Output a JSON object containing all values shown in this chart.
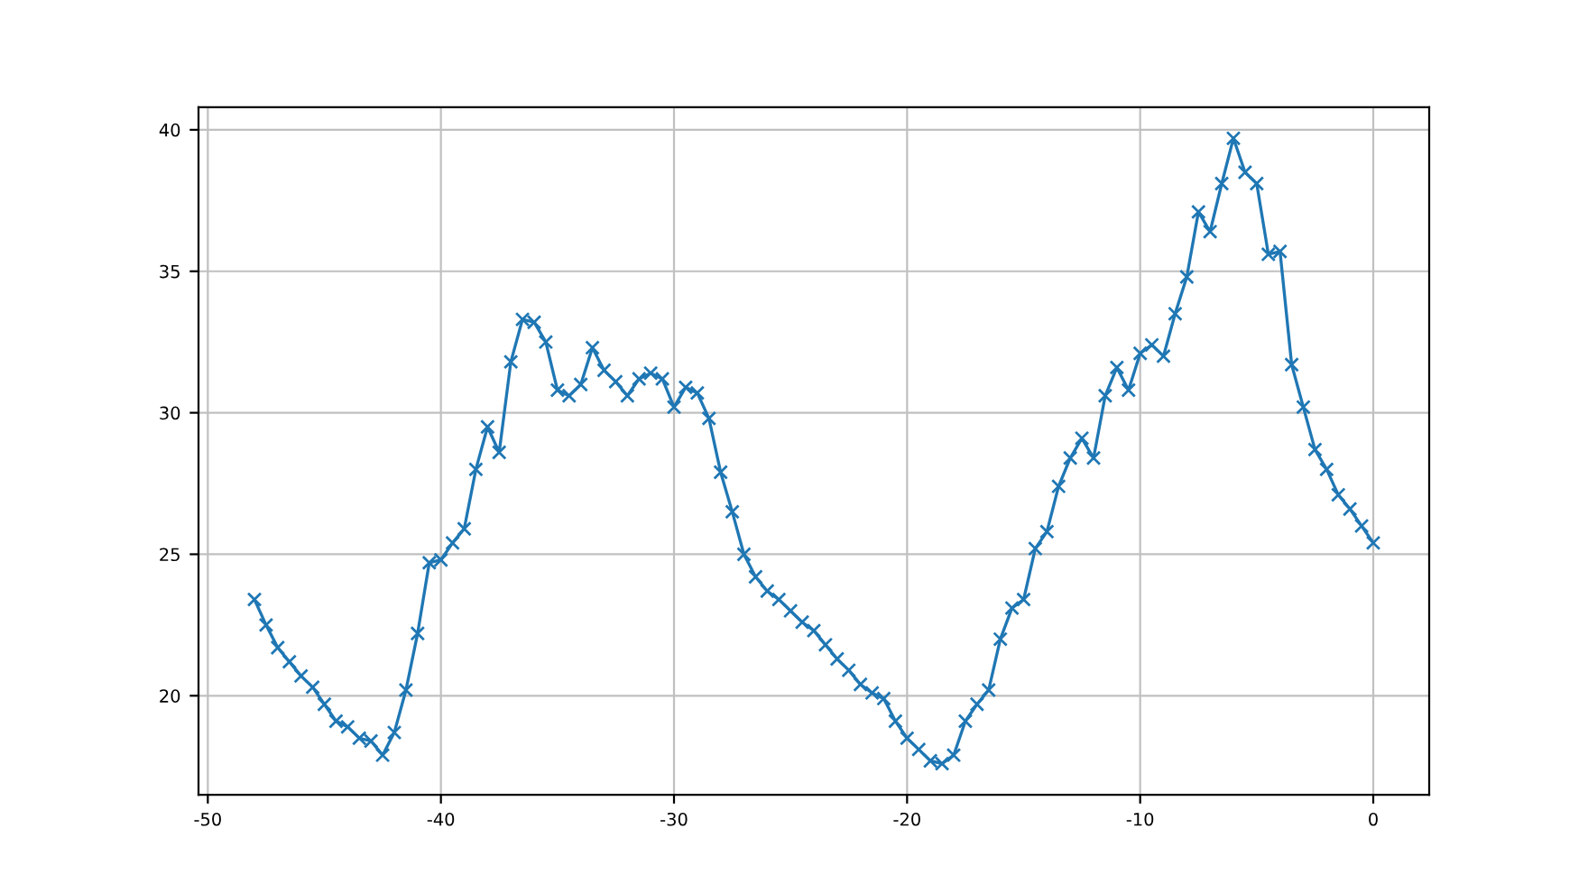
{
  "chart_data": {
    "type": "line",
    "marker": "cross",
    "line_style": "solid",
    "grid": true,
    "x": [
      -48,
      -47.5,
      -47,
      -46.5,
      -46,
      -45.5,
      -45,
      -44.5,
      -44,
      -43.5,
      -43,
      -42.5,
      -42,
      -41.5,
      -41,
      -40.5,
      -40,
      -39.5,
      -39,
      -38.5,
      -38,
      -37.5,
      -37,
      -36.5,
      -36,
      -35.5,
      -35,
      -34.5,
      -34,
      -33.5,
      -33,
      -32.5,
      -32,
      -31.5,
      -31,
      -30.5,
      -30,
      -29.5,
      -29,
      -28.5,
      -28,
      -27.5,
      -27,
      -26.5,
      -26,
      -25.5,
      -25,
      -24.5,
      -24,
      -23.5,
      -23,
      -22.5,
      -22,
      -21.5,
      -21,
      -20.5,
      -20,
      -19.5,
      -19,
      -18.5,
      -18,
      -17.5,
      -17,
      -16.5,
      -16,
      -15.5,
      -15,
      -14.5,
      -14,
      -13.5,
      -13,
      -12.5,
      -12,
      -11.5,
      -11,
      -10.5,
      -10,
      -9.5,
      -9,
      -8.5,
      -8,
      -7.5,
      -7,
      -6.5,
      -6,
      -5.5,
      -5,
      -4.5,
      -4,
      -3.5,
      -3,
      -2.5,
      -2,
      -1.5,
      -1,
      -0.5,
      0
    ],
    "series": [
      {
        "color": "#1f77b4",
        "values": [
          23.4,
          22.5,
          21.7,
          21.2,
          20.7,
          20.3,
          19.7,
          19.1,
          18.9,
          18.5,
          18.4,
          17.9,
          18.7,
          20.2,
          22.2,
          24.7,
          24.8,
          25.4,
          25.9,
          28.0,
          29.5,
          28.6,
          31.8,
          33.3,
          33.2,
          32.5,
          30.8,
          30.6,
          31.0,
          32.3,
          31.5,
          31.1,
          30.6,
          31.2,
          31.4,
          31.2,
          30.2,
          30.9,
          30.7,
          29.8,
          27.9,
          26.5,
          25.0,
          24.2,
          23.7,
          23.4,
          23.0,
          22.6,
          22.3,
          21.8,
          21.3,
          20.9,
          20.4,
          20.1,
          19.9,
          19.1,
          18.5,
          18.1,
          17.7,
          17.6,
          17.9,
          19.1,
          19.7,
          20.2,
          22.0,
          23.1,
          23.4,
          25.2,
          25.8,
          27.4,
          28.4,
          29.1,
          28.4,
          30.6,
          31.6,
          30.8,
          32.1,
          32.4,
          32.0,
          33.5,
          34.8,
          37.1,
          36.4,
          38.1,
          39.7,
          38.5,
          38.1,
          35.6,
          35.7,
          31.7,
          30.2,
          28.7,
          28.0,
          27.1,
          26.6,
          26.0,
          25.4
        ]
      }
    ],
    "xlim": [
      -50.4,
      2.4
    ],
    "xticks": [
      -50,
      -40,
      -30,
      -20,
      -10,
      0
    ],
    "ylim": [
      16.5,
      40.8
    ],
    "yticks": [
      20,
      25,
      30,
      35,
      40
    ]
  }
}
